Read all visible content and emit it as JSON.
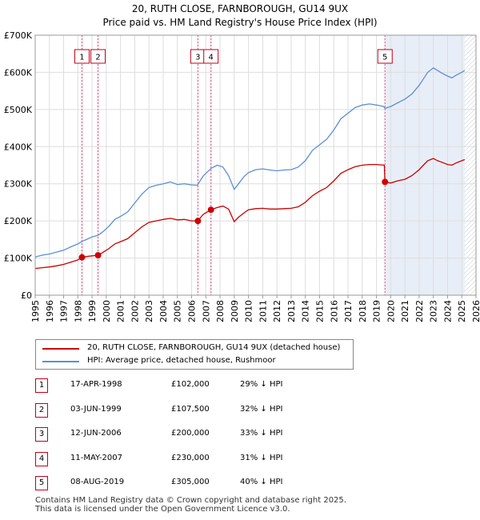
{
  "title_line1": "20, RUTH CLOSE, FARNBOROUGH, GU14 9UX",
  "title_line2": "Price paid vs. HM Land Registry's House Price Index (HPI)",
  "legend": {
    "property": "20, RUTH CLOSE, FARNBOROUGH, GU14 9UX (detached house)",
    "hpi": "HPI: Average price, detached house, Rushmoor"
  },
  "colors": {
    "property": "#cc0000",
    "hpi": "#5b8fd4",
    "shade": "#e8eef8",
    "marker": "#cc0000"
  },
  "sales": [
    {
      "num": "1",
      "date": "17-APR-1998",
      "price": "£102,000",
      "delta": "29% ↓ HPI"
    },
    {
      "num": "2",
      "date": "03-JUN-1999",
      "price": "£107,500",
      "delta": "32% ↓ HPI"
    },
    {
      "num": "3",
      "date": "12-JUN-2006",
      "price": "£200,000",
      "delta": "33% ↓ HPI"
    },
    {
      "num": "4",
      "date": "11-MAY-2007",
      "price": "£230,000",
      "delta": "31% ↓ HPI"
    },
    {
      "num": "5",
      "date": "08-AUG-2019",
      "price": "£305,000",
      "delta": "40% ↓ HPI"
    }
  ],
  "footer_line1": "Contains HM Land Registry data © Crown copyright and database right 2025.",
  "footer_line2": "This data is licensed under the Open Government Licence v3.0.",
  "chart_data": {
    "type": "line",
    "title": "Price paid vs. HM Land Registry's House Price Index (HPI)",
    "xlim": [
      1995,
      2026
    ],
    "ylim": [
      0,
      700000
    ],
    "yticks": [
      0,
      100000,
      200000,
      300000,
      400000,
      500000,
      600000,
      700000
    ],
    "ytick_labels": [
      "£0",
      "£100K",
      "£200K",
      "£300K",
      "£400K",
      "£500K",
      "£600K",
      "£700K"
    ],
    "xticks": [
      1995,
      1996,
      1997,
      1998,
      1999,
      2000,
      2001,
      2002,
      2003,
      2004,
      2005,
      2006,
      2007,
      2008,
      2009,
      2010,
      2011,
      2012,
      2013,
      2014,
      2015,
      2016,
      2017,
      2018,
      2019,
      2020,
      2021,
      2022,
      2023,
      2024,
      2025,
      2026
    ],
    "grid": true,
    "shaded_from": 2019.6,
    "hatched_from": 2025.2,
    "series": [
      {
        "name": "HPI: Average price, detached house, Rushmoor",
        "x": [
          1995.0,
          1995.5,
          1996.0,
          1996.5,
          1997.0,
          1997.5,
          1998.0,
          1998.3,
          1998.6,
          1999.0,
          1999.4,
          1999.8,
          2000.2,
          2000.6,
          2001.0,
          2001.5,
          2002.0,
          2002.5,
          2003.0,
          2003.5,
          2004.0,
          2004.5,
          2005.0,
          2005.5,
          2006.0,
          2006.4,
          2006.8,
          2007.0,
          2007.4,
          2007.8,
          2008.2,
          2008.6,
          2009.0,
          2009.3,
          2009.7,
          2010.0,
          2010.5,
          2011.0,
          2011.5,
          2012.0,
          2012.5,
          2013.0,
          2013.5,
          2014.0,
          2014.5,
          2015.0,
          2015.5,
          2016.0,
          2016.5,
          2017.0,
          2017.5,
          2018.0,
          2018.5,
          2019.0,
          2019.5,
          2019.6,
          2020.0,
          2020.5,
          2021.0,
          2021.5,
          2022.0,
          2022.3,
          2022.6,
          2023.0,
          2023.3,
          2023.6,
          2024.0,
          2024.3,
          2024.6,
          2025.0,
          2025.2
        ],
        "values": [
          103000,
          108000,
          111000,
          116000,
          121000,
          130000,
          138000,
          145000,
          150000,
          157000,
          161000,
          172000,
          186000,
          204000,
          212000,
          224000,
          248000,
          272000,
          290000,
          296000,
          300000,
          305000,
          298000,
          300000,
          297000,
          296000,
          320000,
          328000,
          342000,
          350000,
          345000,
          322000,
          285000,
          300000,
          320000,
          330000,
          338000,
          340000,
          337000,
          335000,
          337000,
          338000,
          345000,
          362000,
          390000,
          405000,
          420000,
          445000,
          475000,
          490000,
          505000,
          512000,
          515000,
          512000,
          508000,
          503000,
          508000,
          518000,
          528000,
          542000,
          565000,
          582000,
          600000,
          612000,
          605000,
          598000,
          590000,
          585000,
          592000,
          600000,
          605000
        ]
      },
      {
        "name": "20, RUTH CLOSE, FARNBOROUGH, GU14 9UX (detached house)",
        "x": [
          1995.0,
          1995.5,
          1996.0,
          1996.5,
          1997.0,
          1997.5,
          1998.0,
          1998.29,
          1998.6,
          1999.0,
          1999.42,
          1999.8,
          2000.2,
          2000.6,
          2001.0,
          2001.5,
          2002.0,
          2002.5,
          2003.0,
          2003.5,
          2004.0,
          2004.5,
          2005.0,
          2005.5,
          2006.0,
          2006.44,
          2006.8,
          2007.0,
          2007.36,
          2007.8,
          2008.2,
          2008.6,
          2009.0,
          2009.3,
          2009.7,
          2010.0,
          2010.5,
          2011.0,
          2011.5,
          2012.0,
          2012.5,
          2013.0,
          2013.5,
          2014.0,
          2014.5,
          2015.0,
          2015.5,
          2016.0,
          2016.5,
          2017.0,
          2017.5,
          2018.0,
          2018.5,
          2019.0,
          2019.55,
          2019.6,
          2020.0,
          2020.5,
          2021.0,
          2021.5,
          2022.0,
          2022.3,
          2022.6,
          2023.0,
          2023.3,
          2023.6,
          2024.0,
          2024.3,
          2024.6,
          2025.0,
          2025.2
        ],
        "values": [
          72000,
          74000,
          76000,
          79000,
          83000,
          89000,
          95000,
          102000,
          104000,
          106000,
          107500,
          116000,
          126000,
          138000,
          144000,
          152000,
          168000,
          184000,
          196000,
          200000,
          204000,
          207000,
          203000,
          204000,
          200000,
          200000,
          217000,
          222000,
          230000,
          236000,
          240000,
          232000,
          198000,
          210000,
          222000,
          230000,
          233000,
          234000,
          232000,
          232000,
          233000,
          234000,
          238000,
          250000,
          268000,
          280000,
          290000,
          308000,
          328000,
          338000,
          346000,
          350000,
          352000,
          352000,
          350000,
          305000,
          302000,
          308000,
          312000,
          322000,
          338000,
          350000,
          362000,
          368000,
          362000,
          358000,
          352000,
          350000,
          356000,
          362000,
          365000
        ]
      }
    ],
    "sales_markers": [
      {
        "label": "1",
        "x": 1998.29,
        "value": 102000
      },
      {
        "label": "2",
        "x": 1999.42,
        "value": 107500
      },
      {
        "label": "3",
        "x": 2006.44,
        "value": 200000
      },
      {
        "label": "4",
        "x": 2007.36,
        "value": 230000
      },
      {
        "label": "5",
        "x": 2019.6,
        "value": 305000
      }
    ]
  }
}
